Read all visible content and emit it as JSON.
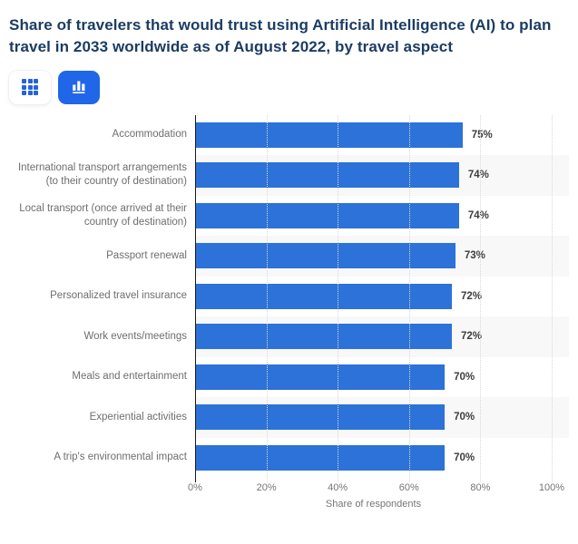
{
  "title": "Share of travelers that would trust using Artificial Intelligence (AI) to plan travel in 2033 worldwide as of August 2022, by travel aspect",
  "toolbar": {
    "table_view": {
      "icon": "grid-icon",
      "active": false
    },
    "chart_view": {
      "icon": "bar-chart-icon",
      "active": true
    }
  },
  "colors": {
    "bar": "#2c72d8",
    "active_button": "#2066e8",
    "icon_blue": "#2662d9",
    "title_text": "#1b3c63",
    "category_text": "#6e6e6e",
    "value_text": "#3d3d3d",
    "tick_text": "#767676",
    "row_stripe": "#f8f8f9",
    "gridline": "#d8d8d8",
    "axis_line": "#1a1a1a"
  },
  "chart_data": {
    "type": "bar",
    "orientation": "horizontal",
    "title": "Share of travelers that would trust using Artificial Intelligence (AI) to plan travel in 2033 worldwide as of August 2022, by travel aspect",
    "categories": [
      "Accommodation",
      "International transport arrangements (to their country of destination)",
      "Local transport (once arrived at their country of destination)",
      "Passport renewal",
      "Personalized travel insurance",
      "Work events/meetings",
      "Meals and entertainment",
      "Experiential activities",
      "A trip's environmental impact"
    ],
    "values": [
      75,
      74,
      74,
      73,
      72,
      72,
      70,
      70,
      70
    ],
    "value_labels": [
      "75%",
      "74%",
      "74%",
      "73%",
      "72%",
      "72%",
      "70%",
      "70%",
      "70%"
    ],
    "xlabel": "Share of respondents",
    "x_ticks": [
      "0%",
      "20%",
      "40%",
      "60%",
      "80%",
      "100%"
    ],
    "x_tick_values": [
      0,
      20,
      40,
      60,
      80,
      100
    ],
    "xlim": [
      0,
      100
    ],
    "grid": true,
    "gridline_style": "dotted",
    "row_striping": true,
    "legend": false
  }
}
